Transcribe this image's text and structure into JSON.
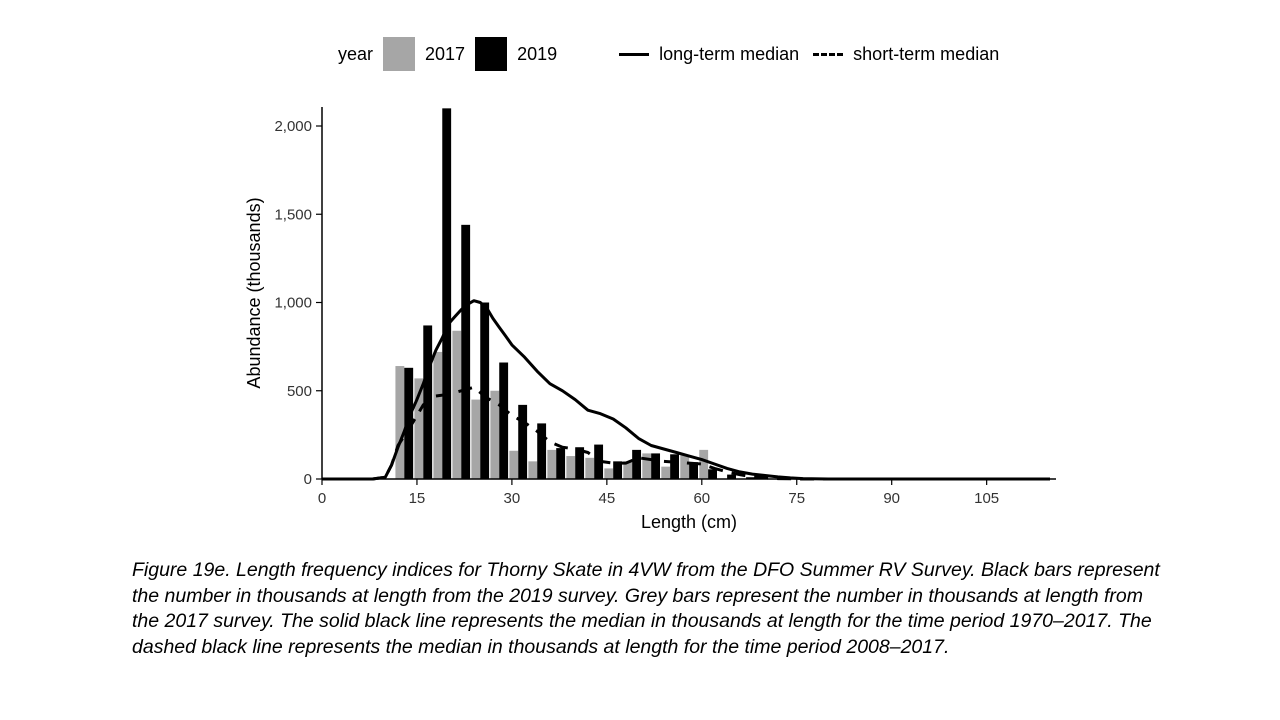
{
  "legend": {
    "title": "year",
    "items": [
      {
        "label": "2017",
        "color": "#a6a6a6",
        "kind": "bar"
      },
      {
        "label": "2019",
        "color": "#000000",
        "kind": "bar"
      },
      {
        "label": "long-term median",
        "kind": "solid-line"
      },
      {
        "label": "short-term median",
        "kind": "dashed-line"
      }
    ]
  },
  "caption": "Figure 19e. Length frequency indices for Thorny Skate in 4VW from the DFO Summer RV Survey. Black bars represent the number in thousands at length from the 2019 survey. Grey bars represent the number in thousands at length from the 2017 survey. The solid black line represents the median in thousands at length for the time period 1970–2017. The dashed black line represents the median in thousands at length for the time period 2008–2017.",
  "chart_data": {
    "type": "bar",
    "xlabel": "Length (cm)",
    "ylabel": "Abundance (thousands)",
    "xlim": [
      0,
      116
    ],
    "ylim": [
      0,
      2100
    ],
    "xticks": [
      0,
      15,
      30,
      45,
      60,
      75,
      90,
      105
    ],
    "yticks": [
      0,
      500,
      1000,
      1500,
      2000
    ],
    "ytick_labels": [
      "0",
      "500",
      "1,000",
      "1,500",
      "2,000"
    ],
    "grid": false,
    "bar_width_cm": 1.4,
    "bars": [
      {
        "name": "2017",
        "color": "#a6a6a6",
        "offset_cm": -0.7,
        "x": [
          13,
          16,
          19,
          22,
          25,
          28,
          31,
          34,
          37,
          40,
          43,
          46,
          49,
          52,
          55,
          58,
          61
        ],
        "values": [
          640,
          570,
          720,
          840,
          450,
          500,
          160,
          100,
          165,
          130,
          120,
          60,
          100,
          145,
          70,
          135,
          165
        ]
      },
      {
        "name": "2019",
        "color": "#000000",
        "offset_cm": 0.7,
        "x": [
          13,
          16,
          19,
          22,
          25,
          28,
          31,
          34,
          37,
          40,
          43,
          46,
          49,
          52,
          55,
          58,
          61,
          64,
          67
        ],
        "values": [
          630,
          870,
          2100,
          1440,
          1000,
          660,
          420,
          315,
          175,
          180,
          195,
          100,
          165,
          145,
          140,
          95,
          55,
          25,
          10
        ]
      }
    ],
    "series": [
      {
        "name": "long-term median",
        "style": "solid",
        "x": [
          0,
          8,
          10,
          11,
          12,
          13,
          14,
          15,
          16,
          17,
          18,
          19,
          20,
          21,
          22,
          23,
          24,
          25,
          26,
          27,
          28,
          29,
          30,
          32,
          34,
          36,
          38,
          40,
          42,
          44,
          46,
          48,
          50,
          52,
          54,
          56,
          58,
          60,
          62,
          64,
          66,
          68,
          70,
          72,
          74,
          76,
          80,
          85,
          90,
          95,
          100,
          105,
          110,
          115
        ],
        "y": [
          0,
          0,
          10,
          80,
          180,
          270,
          370,
          450,
          540,
          640,
          730,
          800,
          880,
          920,
          960,
          990,
          1010,
          1000,
          970,
          910,
          860,
          810,
          760,
          690,
          610,
          540,
          500,
          450,
          390,
          370,
          340,
          290,
          230,
          190,
          170,
          150,
          130,
          110,
          85,
          60,
          40,
          28,
          20,
          12,
          6,
          2,
          0,
          0,
          0,
          0,
          0,
          0,
          0,
          0
        ]
      },
      {
        "name": "short-term median",
        "style": "dashed",
        "x": [
          0,
          8,
          10,
          11,
          12,
          14,
          16,
          18,
          20,
          22,
          24,
          26,
          28,
          30,
          32,
          34,
          36,
          38,
          40,
          42,
          44,
          46,
          48,
          50,
          52,
          54,
          56,
          58,
          60,
          62,
          64,
          66,
          68,
          70,
          72,
          76,
          80,
          90,
          100,
          110,
          115
        ],
        "y": [
          0,
          0,
          10,
          80,
          190,
          300,
          420,
          470,
          480,
          500,
          520,
          460,
          420,
          360,
          320,
          270,
          210,
          180,
          170,
          150,
          100,
          90,
          90,
          120,
          110,
          100,
          95,
          90,
          85,
          60,
          40,
          25,
          12,
          6,
          2,
          0,
          0,
          0,
          0,
          0,
          0
        ]
      }
    ]
  }
}
